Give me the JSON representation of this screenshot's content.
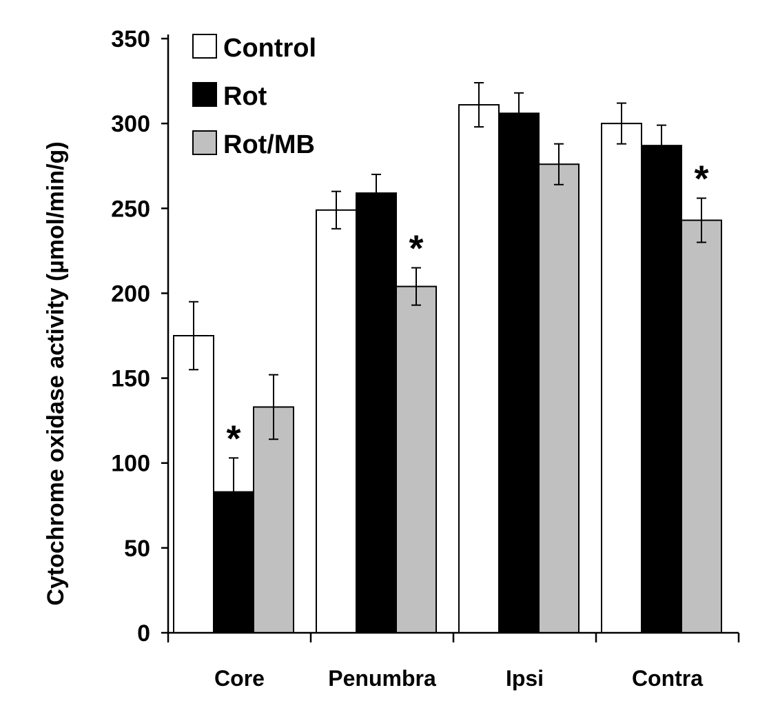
{
  "chart_data": {
    "type": "bar",
    "title": "",
    "xlabel": "",
    "ylabel": "Cytochrome oxidase activity (µmol/min/g)",
    "ylim": [
      0,
      350
    ],
    "yticks": [
      0,
      50,
      100,
      150,
      200,
      250,
      300,
      350
    ],
    "categories": [
      "Core",
      "Penumbra",
      "Ipsi",
      "Contra"
    ],
    "legend_position": "top-left",
    "series": [
      {
        "name": "Control",
        "color": "#ffffff",
        "values": [
          175,
          249,
          311,
          300
        ],
        "errors": [
          20,
          11,
          13,
          12
        ]
      },
      {
        "name": "Rot",
        "color": "#000000",
        "values": [
          83,
          259,
          306,
          287
        ],
        "errors": [
          20,
          11,
          12,
          12
        ]
      },
      {
        "name": "Rot/MB",
        "color": "#c0c0c0",
        "values": [
          133,
          204,
          276,
          243
        ],
        "errors": [
          19,
          11,
          12,
          13
        ]
      }
    ],
    "annotations": [
      {
        "text": "*",
        "category": "Core",
        "series": "Rot"
      },
      {
        "text": "*",
        "category": "Penumbra",
        "series": "Rot/MB"
      },
      {
        "text": "*",
        "category": "Contra",
        "series": "Rot/MB"
      }
    ]
  }
}
